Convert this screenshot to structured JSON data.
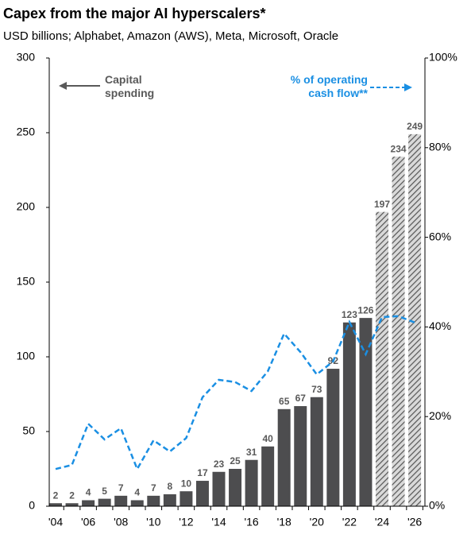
{
  "chart_data": {
    "type": "bar",
    "title": "Capex from the major AI hyperscalers*",
    "subtitle": "USD billions; Alphabet, Amazon (AWS), Meta, Microsoft, Oracle",
    "categories": [
      "'04",
      null,
      "'06",
      null,
      "'08",
      null,
      "'10",
      null,
      "'12",
      null,
      "'14",
      null,
      "'16",
      null,
      "'18",
      null,
      "'20",
      null,
      "'22",
      null,
      "'24",
      null,
      "'26"
    ],
    "series": [
      {
        "name": "Capital spending",
        "color": "#4d4d4f",
        "type": "bar",
        "values": [
          2,
          2,
          4,
          5,
          7,
          4,
          7,
          8,
          10,
          17,
          23,
          25,
          31,
          40,
          65,
          67,
          73,
          92,
          123,
          126,
          197,
          234,
          249
        ],
        "hatched": [
          false,
          false,
          false,
          false,
          false,
          false,
          false,
          false,
          false,
          false,
          false,
          false,
          false,
          false,
          false,
          false,
          false,
          false,
          false,
          false,
          true,
          true,
          true
        ]
      },
      {
        "name": "% of operating cash flow**",
        "color": "#1a8fe3",
        "type": "line",
        "axis": "y2",
        "values": [
          8.3,
          9.2,
          18.4,
          14.9,
          17.4,
          8.3,
          14.7,
          12.2,
          15.2,
          24.3,
          28.2,
          27.7,
          25.7,
          30.1,
          38.5,
          34.4,
          29.4,
          32.3,
          41.1,
          33.9,
          42.2,
          42.4,
          41.0
        ]
      }
    ],
    "ylim": [
      0,
      300
    ],
    "yticks": [
      0,
      50,
      100,
      150,
      200,
      250,
      300
    ],
    "y2lim": [
      0,
      100
    ],
    "y2ticks": [
      {
        "value": 0,
        "label": "0%"
      },
      {
        "value": 20,
        "label": "20%"
      },
      {
        "value": 40,
        "label": "40%"
      },
      {
        "value": 60,
        "label": "60%"
      },
      {
        "value": 80,
        "label": "80%"
      },
      {
        "value": 100,
        "label": "100%"
      }
    ],
    "grid": false
  }
}
